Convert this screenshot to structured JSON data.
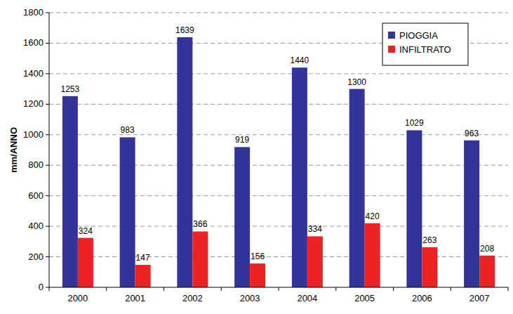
{
  "chart_data": {
    "type": "bar",
    "y_label": "mm/ANNO",
    "categories": [
      "2000",
      "2001",
      "2002",
      "2003",
      "2004",
      "2005",
      "2006",
      "2007"
    ],
    "series": [
      {
        "name": "PIOGGIA",
        "color": "#333399",
        "values": [
          1253,
          983,
          1639,
          919,
          1440,
          1300,
          1029,
          963
        ]
      },
      {
        "name": "INFILTRATO",
        "color": "#ee2222",
        "values": [
          324,
          147,
          366,
          156,
          334,
          420,
          263,
          208
        ]
      }
    ],
    "ylim": [
      0,
      1800
    ],
    "yticks": [
      0,
      200,
      400,
      600,
      800,
      1000,
      1200,
      1400,
      1600,
      1800
    ],
    "grid": true,
    "legend": "upper right",
    "data_labels": true
  }
}
